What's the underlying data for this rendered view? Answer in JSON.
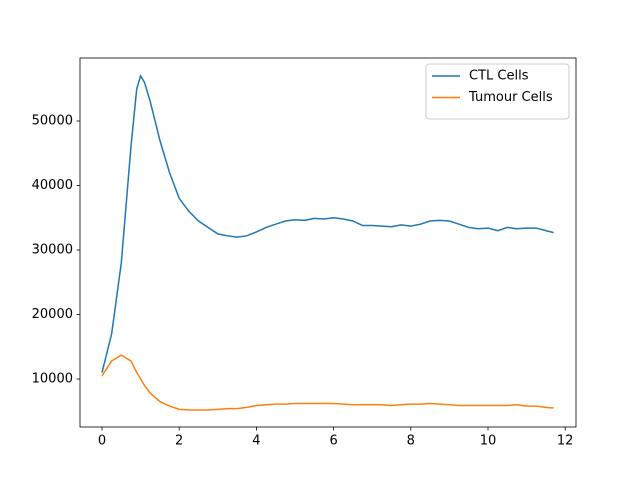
{
  "chart_data": {
    "type": "line",
    "x": [
      0,
      0.25,
      0.5,
      0.75,
      0.9,
      1.0,
      1.1,
      1.25,
      1.5,
      1.75,
      2.0,
      2.25,
      2.5,
      2.75,
      3.0,
      3.25,
      3.5,
      3.75,
      4.0,
      4.25,
      4.5,
      4.75,
      5.0,
      5.25,
      5.5,
      5.75,
      6.0,
      6.25,
      6.5,
      6.75,
      7.0,
      7.25,
      7.5,
      7.75,
      8.0,
      8.25,
      8.5,
      8.75,
      9.0,
      9.25,
      9.5,
      9.75,
      10.0,
      10.25,
      10.5,
      10.75,
      11.0,
      11.25,
      11.5,
      11.7
    ],
    "series": [
      {
        "name": "CTL Cells",
        "color": "#1f77b4",
        "values": [
          11000,
          17000,
          28000,
          46000,
          55000,
          57000,
          56000,
          53000,
          47000,
          42000,
          38000,
          36000,
          34500,
          33500,
          32500,
          32200,
          32000,
          32200,
          32800,
          33500,
          34000,
          34500,
          34700,
          34600,
          34900,
          34800,
          35000,
          34800,
          34500,
          33800,
          33800,
          33700,
          33600,
          33900,
          33700,
          34000,
          34500,
          34600,
          34500,
          34000,
          33500,
          33300,
          33400,
          33000,
          33500,
          33300,
          33400,
          33400,
          33000,
          32700
        ]
      },
      {
        "name": "Tumour Cells",
        "color": "#ff7f0e",
        "values": [
          10500,
          12800,
          13700,
          12800,
          11000,
          10000,
          9000,
          7800,
          6500,
          5800,
          5300,
          5200,
          5200,
          5200,
          5300,
          5400,
          5400,
          5600,
          5900,
          6000,
          6100,
          6100,
          6200,
          6200,
          6200,
          6200,
          6200,
          6100,
          6000,
          6000,
          6000,
          6000,
          5900,
          6000,
          6100,
          6100,
          6200,
          6100,
          6000,
          5900,
          5900,
          5900,
          5900,
          5900,
          5900,
          6000,
          5800,
          5800,
          5600,
          5500
        ]
      }
    ],
    "xlim": [
      -0.57,
      12.28
    ],
    "xticks": [
      0,
      2,
      4,
      6,
      8,
      10,
      12
    ],
    "ylim": [
      2560,
      59770
    ],
    "yticks": [
      10000,
      20000,
      30000,
      40000,
      50000
    ],
    "legend": "upper right",
    "grid": false
  }
}
